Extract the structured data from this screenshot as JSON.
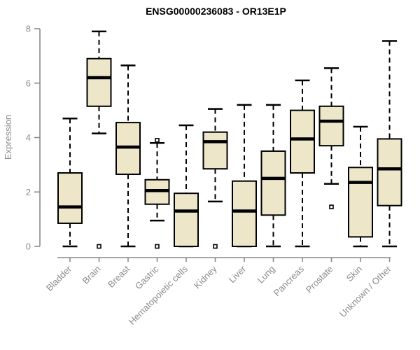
{
  "colors": {
    "background": "#FFFFFF",
    "box_fill": "#EDE6C9",
    "box_stroke": "#000000",
    "median_color": "#000000",
    "whisker_color": "#000000",
    "outlier_stroke": "#000000",
    "axis_color": "#8A8A8A",
    "tick_text_color": "#8A8A8A",
    "title_color": "#000000"
  },
  "chart_data": {
    "type": "boxplot",
    "title": "ENSG00000236083 - OR13E1P",
    "xlabel": "",
    "ylabel": "Expression",
    "ylim": [
      0,
      8
    ],
    "yticks": [
      0,
      2,
      4,
      6,
      8
    ],
    "grid": false,
    "legend": "none",
    "x_tick_label_rotation_deg": 45,
    "whisker_style": "dashed",
    "categories": [
      "Bladder",
      "Brain",
      "Breast",
      "Gastric",
      "Hematopoietic cells",
      "Kidney",
      "Liver",
      "Lung",
      "Pancreas",
      "Prostate",
      "Skin",
      "Unknown / Other"
    ],
    "series": [
      {
        "name": "Bladder",
        "whisker_low": 0,
        "q1": 0.85,
        "median": 1.45,
        "q3": 2.7,
        "whisker_high": 4.7,
        "outliers": []
      },
      {
        "name": "Brain",
        "whisker_low": 4.15,
        "q1": 5.15,
        "median": 6.2,
        "q3": 6.9,
        "whisker_high": 7.9,
        "outliers": [
          0
        ]
      },
      {
        "name": "Breast",
        "whisker_low": 0,
        "q1": 2.65,
        "median": 3.65,
        "q3": 4.55,
        "whisker_high": 6.65,
        "outliers": []
      },
      {
        "name": "Gastric",
        "whisker_low": 0.95,
        "q1": 1.55,
        "median": 2.05,
        "q3": 2.45,
        "whisker_high": 3.8,
        "outliers": [
          3.9,
          0
        ]
      },
      {
        "name": "Hematopoietic cells",
        "whisker_low": 0,
        "q1": 0,
        "median": 1.3,
        "q3": 1.95,
        "whisker_high": 4.45,
        "outliers": []
      },
      {
        "name": "Kidney",
        "whisker_low": 1.65,
        "q1": 2.85,
        "median": 3.85,
        "q3": 4.2,
        "whisker_high": 5.05,
        "outliers": [
          0
        ]
      },
      {
        "name": "Liver",
        "whisker_low": 0,
        "q1": 0,
        "median": 1.3,
        "q3": 2.4,
        "whisker_high": 5.2,
        "outliers": []
      },
      {
        "name": "Lung",
        "whisker_low": 0,
        "q1": 1.15,
        "median": 2.5,
        "q3": 3.5,
        "whisker_high": 5.2,
        "outliers": []
      },
      {
        "name": "Pancreas",
        "whisker_low": 0,
        "q1": 2.7,
        "median": 3.95,
        "q3": 5.0,
        "whisker_high": 6.1,
        "outliers": []
      },
      {
        "name": "Prostate",
        "whisker_low": 2.3,
        "q1": 3.7,
        "median": 4.6,
        "q3": 5.15,
        "whisker_high": 6.55,
        "outliers": [
          1.45
        ]
      },
      {
        "name": "Skin",
        "whisker_low": 0,
        "q1": 0.35,
        "median": 2.35,
        "q3": 2.9,
        "whisker_high": 4.4,
        "outliers": []
      },
      {
        "name": "Unknown / Other",
        "whisker_low": 0,
        "q1": 1.5,
        "median": 2.85,
        "q3": 3.95,
        "whisker_high": 7.55,
        "outliers": []
      }
    ]
  }
}
